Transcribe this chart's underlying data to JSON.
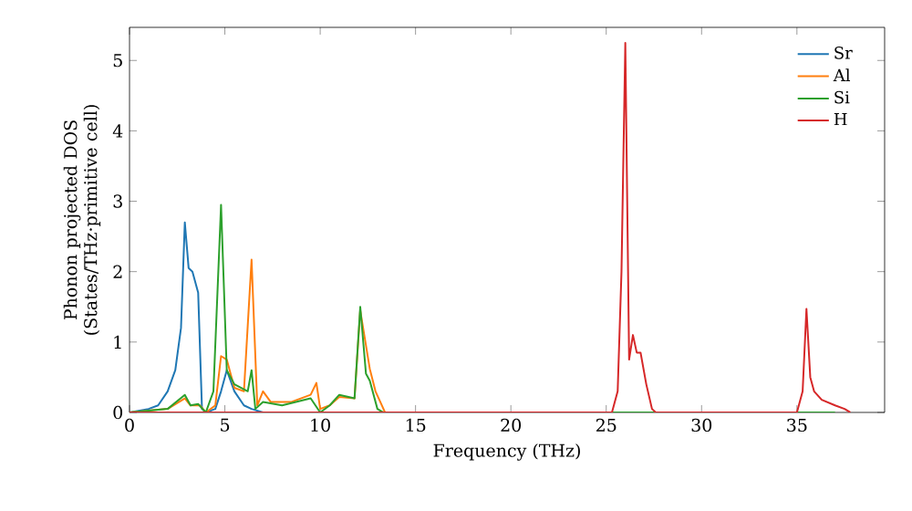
{
  "chart_data": {
    "type": "line",
    "xlabel": "Frequency (THz)",
    "ylabel": "Phonon projected DOS\n(States/THz·primitive cell)",
    "xlim": [
      0,
      39.6
    ],
    "ylim": [
      0,
      5.47
    ],
    "xticks": [
      0,
      5,
      10,
      15,
      20,
      25,
      30,
      35
    ],
    "yticks": [
      0,
      1,
      2,
      3,
      4,
      5
    ],
    "legend": "top right",
    "grid": false,
    "marker": "none",
    "line_style": "solid",
    "series": [
      {
        "name": "Sr",
        "color": "#1f77b4",
        "x": [
          0,
          1,
          1.5,
          2,
          2.4,
          2.7,
          2.9,
          3.1,
          3.3,
          3.6,
          3.8,
          4,
          4.5,
          4.8,
          5.1,
          5.5,
          6,
          6.4,
          7
        ],
        "values": [
          0,
          0.05,
          0.1,
          0.3,
          0.6,
          1.2,
          2.7,
          2.05,
          2.0,
          1.7,
          0.05,
          0,
          0.05,
          0.3,
          0.6,
          0.3,
          0.1,
          0.05,
          0
        ]
      },
      {
        "name": "Al",
        "color": "#ff7f0e",
        "x": [
          0,
          2,
          2.9,
          3.2,
          3.7,
          4,
          4.5,
          4.8,
          5.1,
          5.5,
          6,
          6.4,
          6.7,
          7,
          7.4,
          8.5,
          9.5,
          9.8,
          10,
          10.5,
          11,
          11.8,
          12.1,
          12.6,
          12.9,
          13.4
        ],
        "values": [
          0,
          0.05,
          0.2,
          0.1,
          0.1,
          0,
          0.1,
          0.8,
          0.75,
          0.35,
          0.3,
          2.17,
          0.1,
          0.3,
          0.15,
          0.15,
          0.25,
          0.42,
          0.05,
          0.1,
          0.22,
          0.2,
          1.45,
          0.62,
          0.3,
          0
        ]
      },
      {
        "name": "Si",
        "color": "#2ca02c",
        "x": [
          0,
          2,
          2.9,
          3.2,
          3.6,
          4,
          4.4,
          4.8,
          5.1,
          5.5,
          6.2,
          6.4,
          6.6,
          7,
          8,
          9.5,
          10,
          10.5,
          11,
          11.8,
          12.1,
          12.4,
          12.6,
          13,
          13.3,
          37
        ],
        "values": [
          0,
          0.05,
          0.25,
          0.1,
          0.12,
          0,
          0.3,
          2.95,
          0.6,
          0.4,
          0.3,
          0.6,
          0.05,
          0.15,
          0.1,
          0.2,
          0,
          0.1,
          0.25,
          0.2,
          1.5,
          0.55,
          0.45,
          0.05,
          0,
          0
        ]
      },
      {
        "name": "H",
        "color": "#d62728",
        "x": [
          0,
          25.3,
          25.6,
          25.8,
          26.0,
          26.2,
          26.4,
          26.6,
          26.8,
          27.1,
          27.4,
          27.6,
          35,
          35.3,
          35.5,
          35.7,
          35.9,
          36.3,
          37,
          37.5,
          37.8
        ],
        "values": [
          0,
          0,
          0.3,
          2,
          5.25,
          0.75,
          1.1,
          0.85,
          0.85,
          0.4,
          0.05,
          0,
          0,
          0.3,
          1.47,
          0.5,
          0.3,
          0.18,
          0.1,
          0.05,
          0
        ]
      }
    ]
  }
}
